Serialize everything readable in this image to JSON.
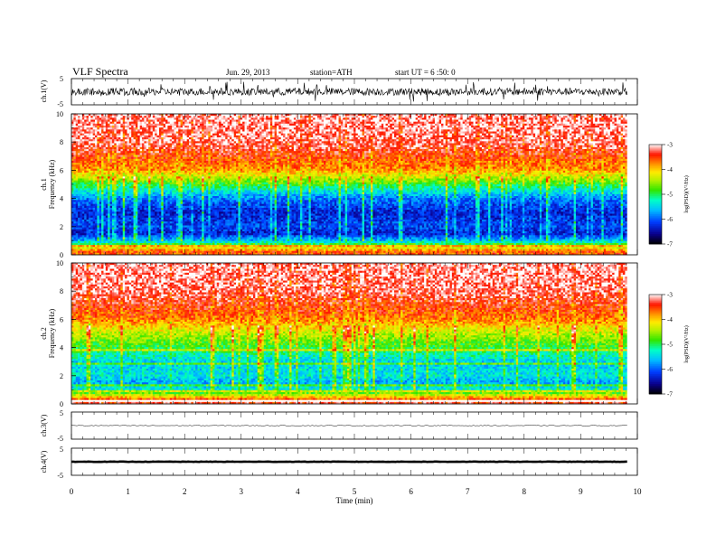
{
  "header": {
    "title": "VLF  Spectra",
    "date": "Jun. 29, 2013",
    "station": "station=ATH",
    "start": "start  UT =   6  :50: 0"
  },
  "chart_data": [
    {
      "type": "line",
      "name": "ch1-waveform",
      "ylabel": "ch.1(V)",
      "ylim": [
        -5,
        5
      ],
      "yticks": [
        "5",
        "-5"
      ],
      "xlim": [
        0,
        10
      ],
      "data_end_min": 9.82,
      "signal": "noisy waveform, typical amplitude about 1.5 V, spikes to about 4 V"
    },
    {
      "type": "heatmap",
      "name": "ch1-spectrogram",
      "ylabel_top": "ch.1",
      "ylabel": "Frequency  (kHz)",
      "ylim": [
        0,
        10
      ],
      "yticks": [
        "0",
        "2",
        "4",
        "6",
        "8",
        "10"
      ],
      "xlim": [
        0,
        10
      ],
      "colorbar": {
        "label": "log(PSD)(V²/Hz)",
        "range": [
          -7,
          -3
        ],
        "ticks": [
          "-3",
          "-4",
          "-5",
          "-6",
          "-7"
        ]
      },
      "approx_level_by_freq_khz": [
        {
          "f": 0.25,
          "level": -3.6
        },
        {
          "f": 0.5,
          "level": -4.2
        },
        {
          "f": 1.0,
          "level": -5.6
        },
        {
          "f": 1.5,
          "level": -6.3
        },
        {
          "f": 2.0,
          "level": -6.1
        },
        {
          "f": 3.0,
          "level": -6.3
        },
        {
          "f": 4.0,
          "level": -5.9
        },
        {
          "f": 5.0,
          "level": -4.9
        },
        {
          "f": 6.0,
          "level": -3.8
        },
        {
          "f": 8.0,
          "level": -3.2
        },
        {
          "f": 10.0,
          "level": -3.1
        }
      ]
    },
    {
      "type": "heatmap",
      "name": "ch2-spectrogram",
      "ylabel_top": "ch.2",
      "ylabel": "Frequency  (kHz)",
      "ylim": [
        0,
        10
      ],
      "yticks": [
        "0",
        "2",
        "4",
        "6",
        "8",
        "10"
      ],
      "xlim": [
        0,
        10
      ],
      "colorbar": {
        "label": "log(PSD)(V²/Hz)",
        "range": [
          -7,
          -3
        ],
        "ticks": [
          "-3",
          "-4",
          "-5",
          "-6",
          "-7"
        ]
      },
      "approx_level_by_freq_khz": [
        {
          "f": 0.25,
          "level": -3.4
        },
        {
          "f": 0.5,
          "level": -4.0
        },
        {
          "f": 1.0,
          "level": -5.3
        },
        {
          "f": 1.5,
          "level": -5.7
        },
        {
          "f": 2.0,
          "level": -5.4
        },
        {
          "f": 3.0,
          "level": -5.5
        },
        {
          "f": 4.0,
          "level": -4.9
        },
        {
          "f": 5.0,
          "level": -4.4
        },
        {
          "f": 6.0,
          "level": -3.7
        },
        {
          "f": 8.0,
          "level": -3.2
        },
        {
          "f": 10.0,
          "level": -3.1
        }
      ]
    },
    {
      "type": "line",
      "name": "ch3-waveform",
      "ylabel": "ch.3(V)",
      "ylim": [
        -5,
        5
      ],
      "yticks": [
        "5",
        "-5"
      ],
      "xlim": [
        0,
        10
      ],
      "data_end_min": 9.82,
      "level": 0,
      "signal": "near-flat trace at 0 V"
    },
    {
      "type": "line",
      "name": "ch4-waveform",
      "ylabel": "ch.4(V)",
      "ylim": [
        -5,
        5
      ],
      "yticks": [
        "5",
        "-5"
      ],
      "xlim": [
        0,
        10
      ],
      "data_end_min": 9.82,
      "level": 0,
      "signal": "thick flat trace at 0 V"
    }
  ],
  "xaxis": {
    "label": "Time  (min)",
    "ticks": [
      "0",
      "1",
      "2",
      "3",
      "4",
      "5",
      "6",
      "7",
      "8",
      "9",
      "10"
    ]
  }
}
